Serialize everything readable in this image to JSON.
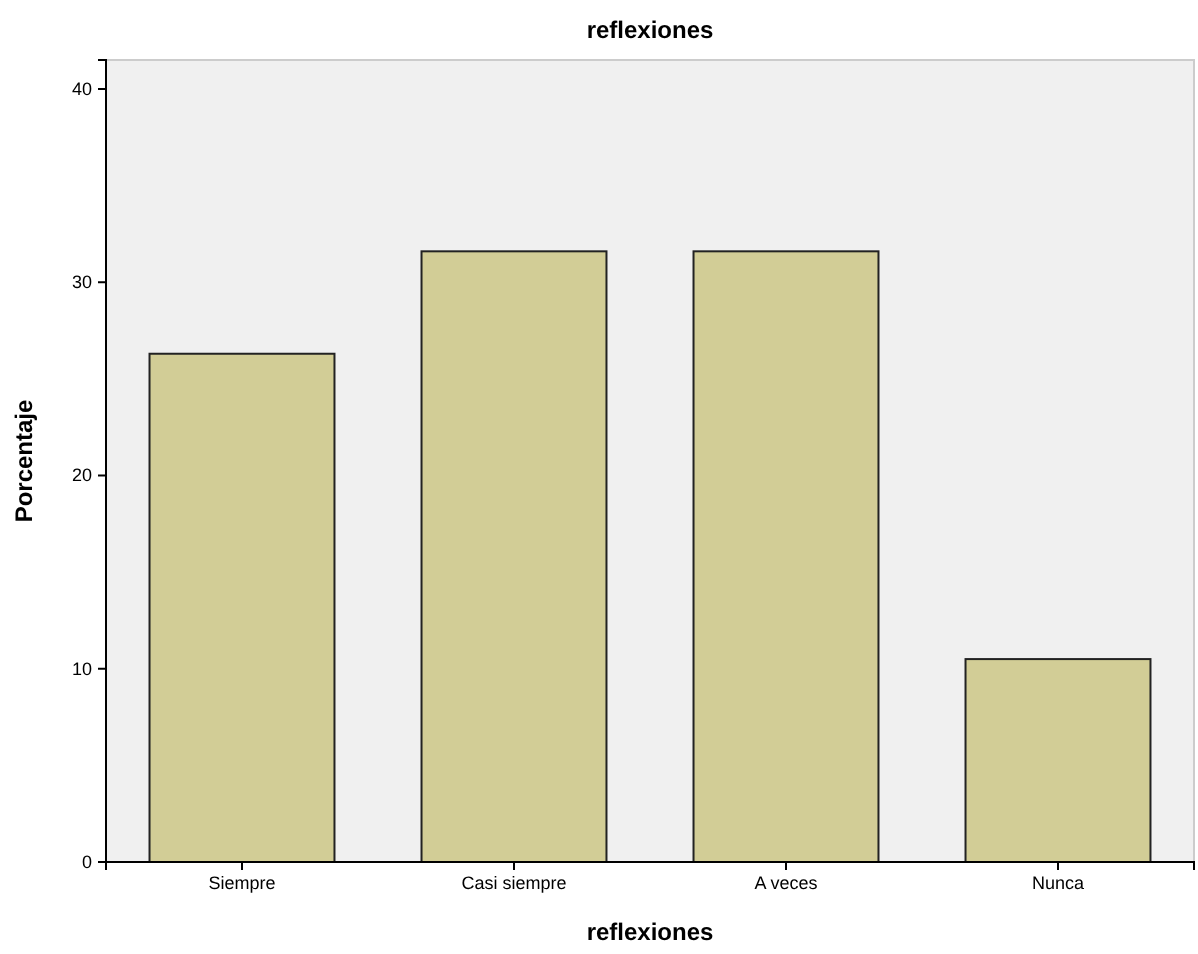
{
  "chart_data": {
    "type": "bar",
    "title": "reflexiones",
    "xlabel": "reflexiones",
    "ylabel": "Porcentaje",
    "categories": [
      "Siempre",
      "Casi siempre",
      "A veces",
      "Nunca"
    ],
    "values": [
      26.3,
      31.6,
      31.6,
      10.5
    ],
    "color": "#d2cd96",
    "ylim": [
      0,
      41.5
    ],
    "yticks": [
      0,
      10,
      20,
      30,
      40
    ],
    "grid": false
  }
}
